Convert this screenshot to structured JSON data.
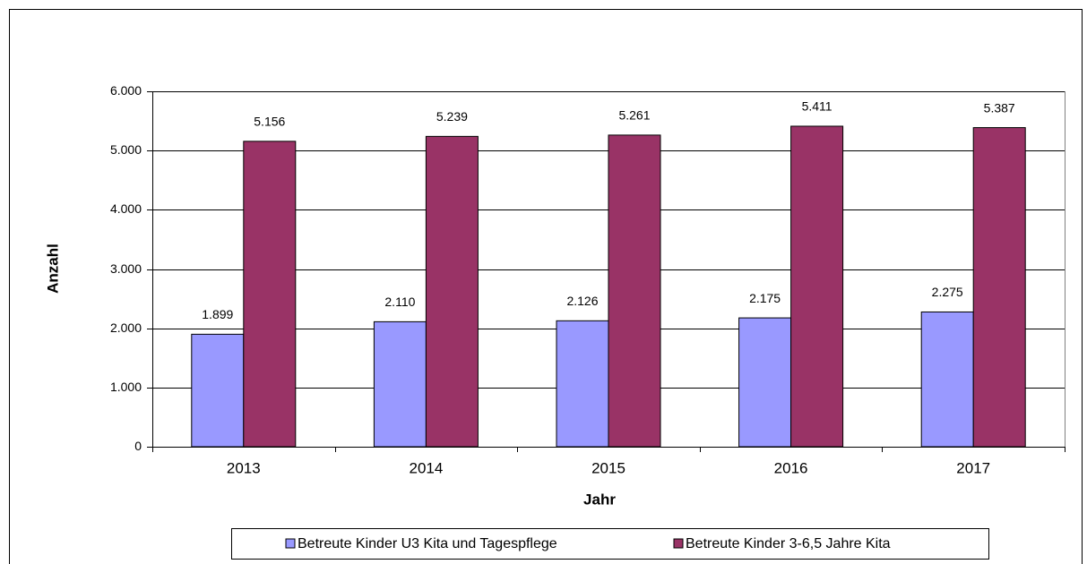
{
  "chart_data": {
    "type": "bar",
    "categories": [
      "2013",
      "2014",
      "2015",
      "2016",
      "2017"
    ],
    "series": [
      {
        "name": "Betreute Kinder U3 Kita und Tagespflege",
        "color": "#9999ff",
        "values": [
          1899,
          2110,
          2126,
          2175,
          2275
        ],
        "value_labels": [
          "1.899",
          "2.110",
          "2.126",
          "2.175",
          "2.275"
        ]
      },
      {
        "name": "Betreute Kinder 3-6,5 Jahre Kita",
        "color": "#993366",
        "values": [
          5156,
          5239,
          5261,
          5411,
          5387
        ],
        "value_labels": [
          "5.156",
          "5.239",
          "5.261",
          "5.411",
          "5.387"
        ]
      }
    ],
    "xlabel": "Jahr",
    "ylabel": "Anzahl",
    "ylim": [
      0,
      6000
    ],
    "yticks": [
      0,
      {
        "value": 1000,
        "label": "1.000"
      },
      {
        "value": 2000,
        "label": "2.000"
      },
      {
        "value": 3000,
        "label": "3.000"
      },
      {
        "value": 4000,
        "label": "4.000"
      },
      {
        "value": 5000,
        "label": "5.000"
      },
      {
        "value": 6000,
        "label": "6.000"
      }
    ],
    "grid": true,
    "legend": "bottom"
  }
}
